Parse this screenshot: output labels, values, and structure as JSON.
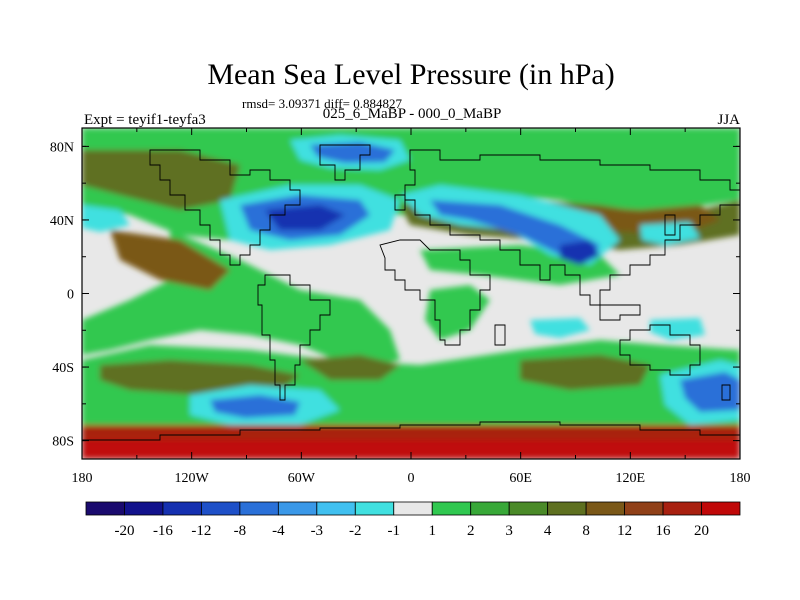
{
  "title": "Mean Sea Level Pressure (in hPa)",
  "stats": "rmsd= 3.09371 diff= 0.884827",
  "experiment": "Expt = teyif1-teyfa3",
  "comparison": "025_6_MaBP - 000_0_MaBP",
  "season": "JJA",
  "axes": {
    "lat_ticks": [
      {
        "value": 80,
        "label": "80N"
      },
      {
        "value": 40,
        "label": "40N"
      },
      {
        "value": 0,
        "label": "0"
      },
      {
        "value": -40,
        "label": "40S"
      },
      {
        "value": -80,
        "label": "80S"
      }
    ],
    "lon_ticks": [
      {
        "value": -180,
        "label": "180"
      },
      {
        "value": -120,
        "label": "120W"
      },
      {
        "value": -60,
        "label": "60W"
      },
      {
        "value": 0,
        "label": "0"
      },
      {
        "value": 60,
        "label": "60E"
      },
      {
        "value": 120,
        "label": "120E"
      },
      {
        "value": 180,
        "label": "180"
      }
    ],
    "lat_range": [
      -90,
      90
    ],
    "lon_range": [
      -180,
      180
    ]
  },
  "colorbar": {
    "colors": [
      "#1a0a6e",
      "#12128c",
      "#1530b0",
      "#1e50c8",
      "#2a70d8",
      "#3a98e8",
      "#40c0f0",
      "#40e0e0",
      "#e8e8e8",
      "#30c850",
      "#38a838",
      "#4a8a28",
      "#5e7020",
      "#7a5818",
      "#904018",
      "#a82010",
      "#c00808"
    ],
    "labels": [
      "-20",
      "-16",
      "-12",
      "-8",
      "-4",
      "-3",
      "-2",
      "-1",
      "1",
      "2",
      "3",
      "4",
      "8",
      "12",
      "16",
      "20"
    ]
  },
  "map_colors": {
    "neutral": "#e8e8e8",
    "green": "#30c850",
    "dark_green": "#4a8a28",
    "olive": "#5e7020",
    "brown": "#7a5818",
    "dark_red": "#a82010",
    "red": "#c00808",
    "cyan": "#40e0e0",
    "light_blue": "#40c0f0",
    "blue": "#2a70d8",
    "deep_blue": "#1530b0"
  }
}
